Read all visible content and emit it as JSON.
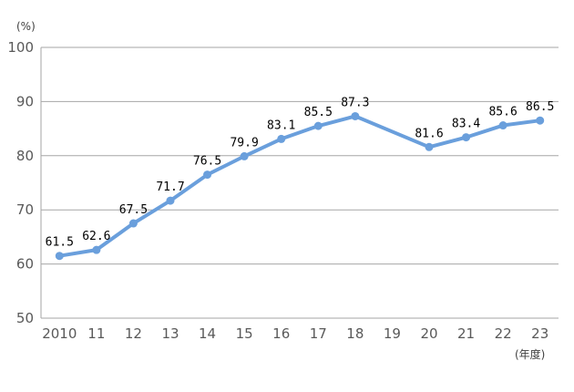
{
  "chart_data": {
    "type": "line",
    "ylabel": "(%)",
    "xlabel": "(年度)",
    "ylim": [
      50,
      100
    ],
    "yticks": [
      50,
      60,
      70,
      80,
      90,
      100
    ],
    "grid": true,
    "legend": "none",
    "categories": [
      "2010",
      "11",
      "12",
      "13",
      "14",
      "15",
      "16",
      "17",
      "18",
      "19",
      "20",
      "21",
      "22",
      "23"
    ],
    "series": [
      {
        "values": [
          61.5,
          62.6,
          67.5,
          71.7,
          76.5,
          79.9,
          83.1,
          85.5,
          87.3,
          null,
          81.6,
          83.4,
          85.6,
          86.5
        ],
        "labels": [
          "61.5",
          "62.6",
          "67.5",
          "71.7",
          "76.5",
          "79.9",
          "83.1",
          "85.5",
          "87.3",
          "",
          "81.6",
          "83.4",
          "85.6",
          "86.5"
        ],
        "color": "#6a9fdc"
      }
    ],
    "colors": {
      "grid": "#a6a6a6",
      "axis": "#a6a6a6",
      "tick": "#595959"
    }
  }
}
